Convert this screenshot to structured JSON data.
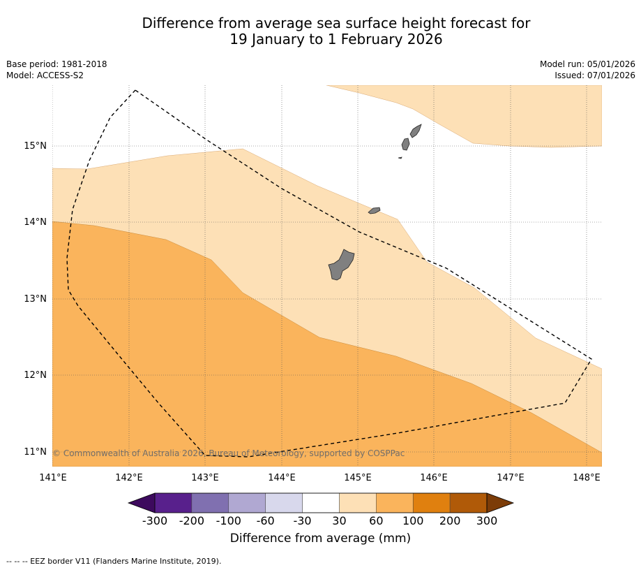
{
  "title_line1": "Difference from average sea surface height forecast for",
  "title_line2": "19 January to 1 February 2026",
  "meta_left": [
    "Base period: 1981-2018",
    "Model: ACCESS-S2"
  ],
  "meta_right": [
    "Model run: 05/01/2026",
    "Issued: 07/01/2026"
  ],
  "lat_ticks": [
    "15°N",
    "14°N",
    "13°N",
    "12°N",
    "11°N"
  ],
  "lon_ticks": [
    "141°E",
    "142°E",
    "143°E",
    "144°E",
    "145°E",
    "146°E",
    "147°E",
    "148°E"
  ],
  "copyright": "© Commonwealth of Australia 2026, Bureau of Meteorology, supported by COSPPac",
  "colorbar": {
    "title": "Difference from average (mm)",
    "labels": [
      "-300",
      "-200",
      "-100",
      "-60",
      "-30",
      "30",
      "60",
      "100",
      "200",
      "300"
    ],
    "colors": [
      "#3d0a5e",
      "#58208c",
      "#8070b0",
      "#b0a8d2",
      "#d8d8ec",
      "#ffffff",
      "#fde0b6",
      "#fab45c",
      "#e0800f",
      "#b05a08",
      "#7c3c08"
    ]
  },
  "footer": "--  --  -- EEZ border V11 (Flanders Marine Institute, 2019)."
}
